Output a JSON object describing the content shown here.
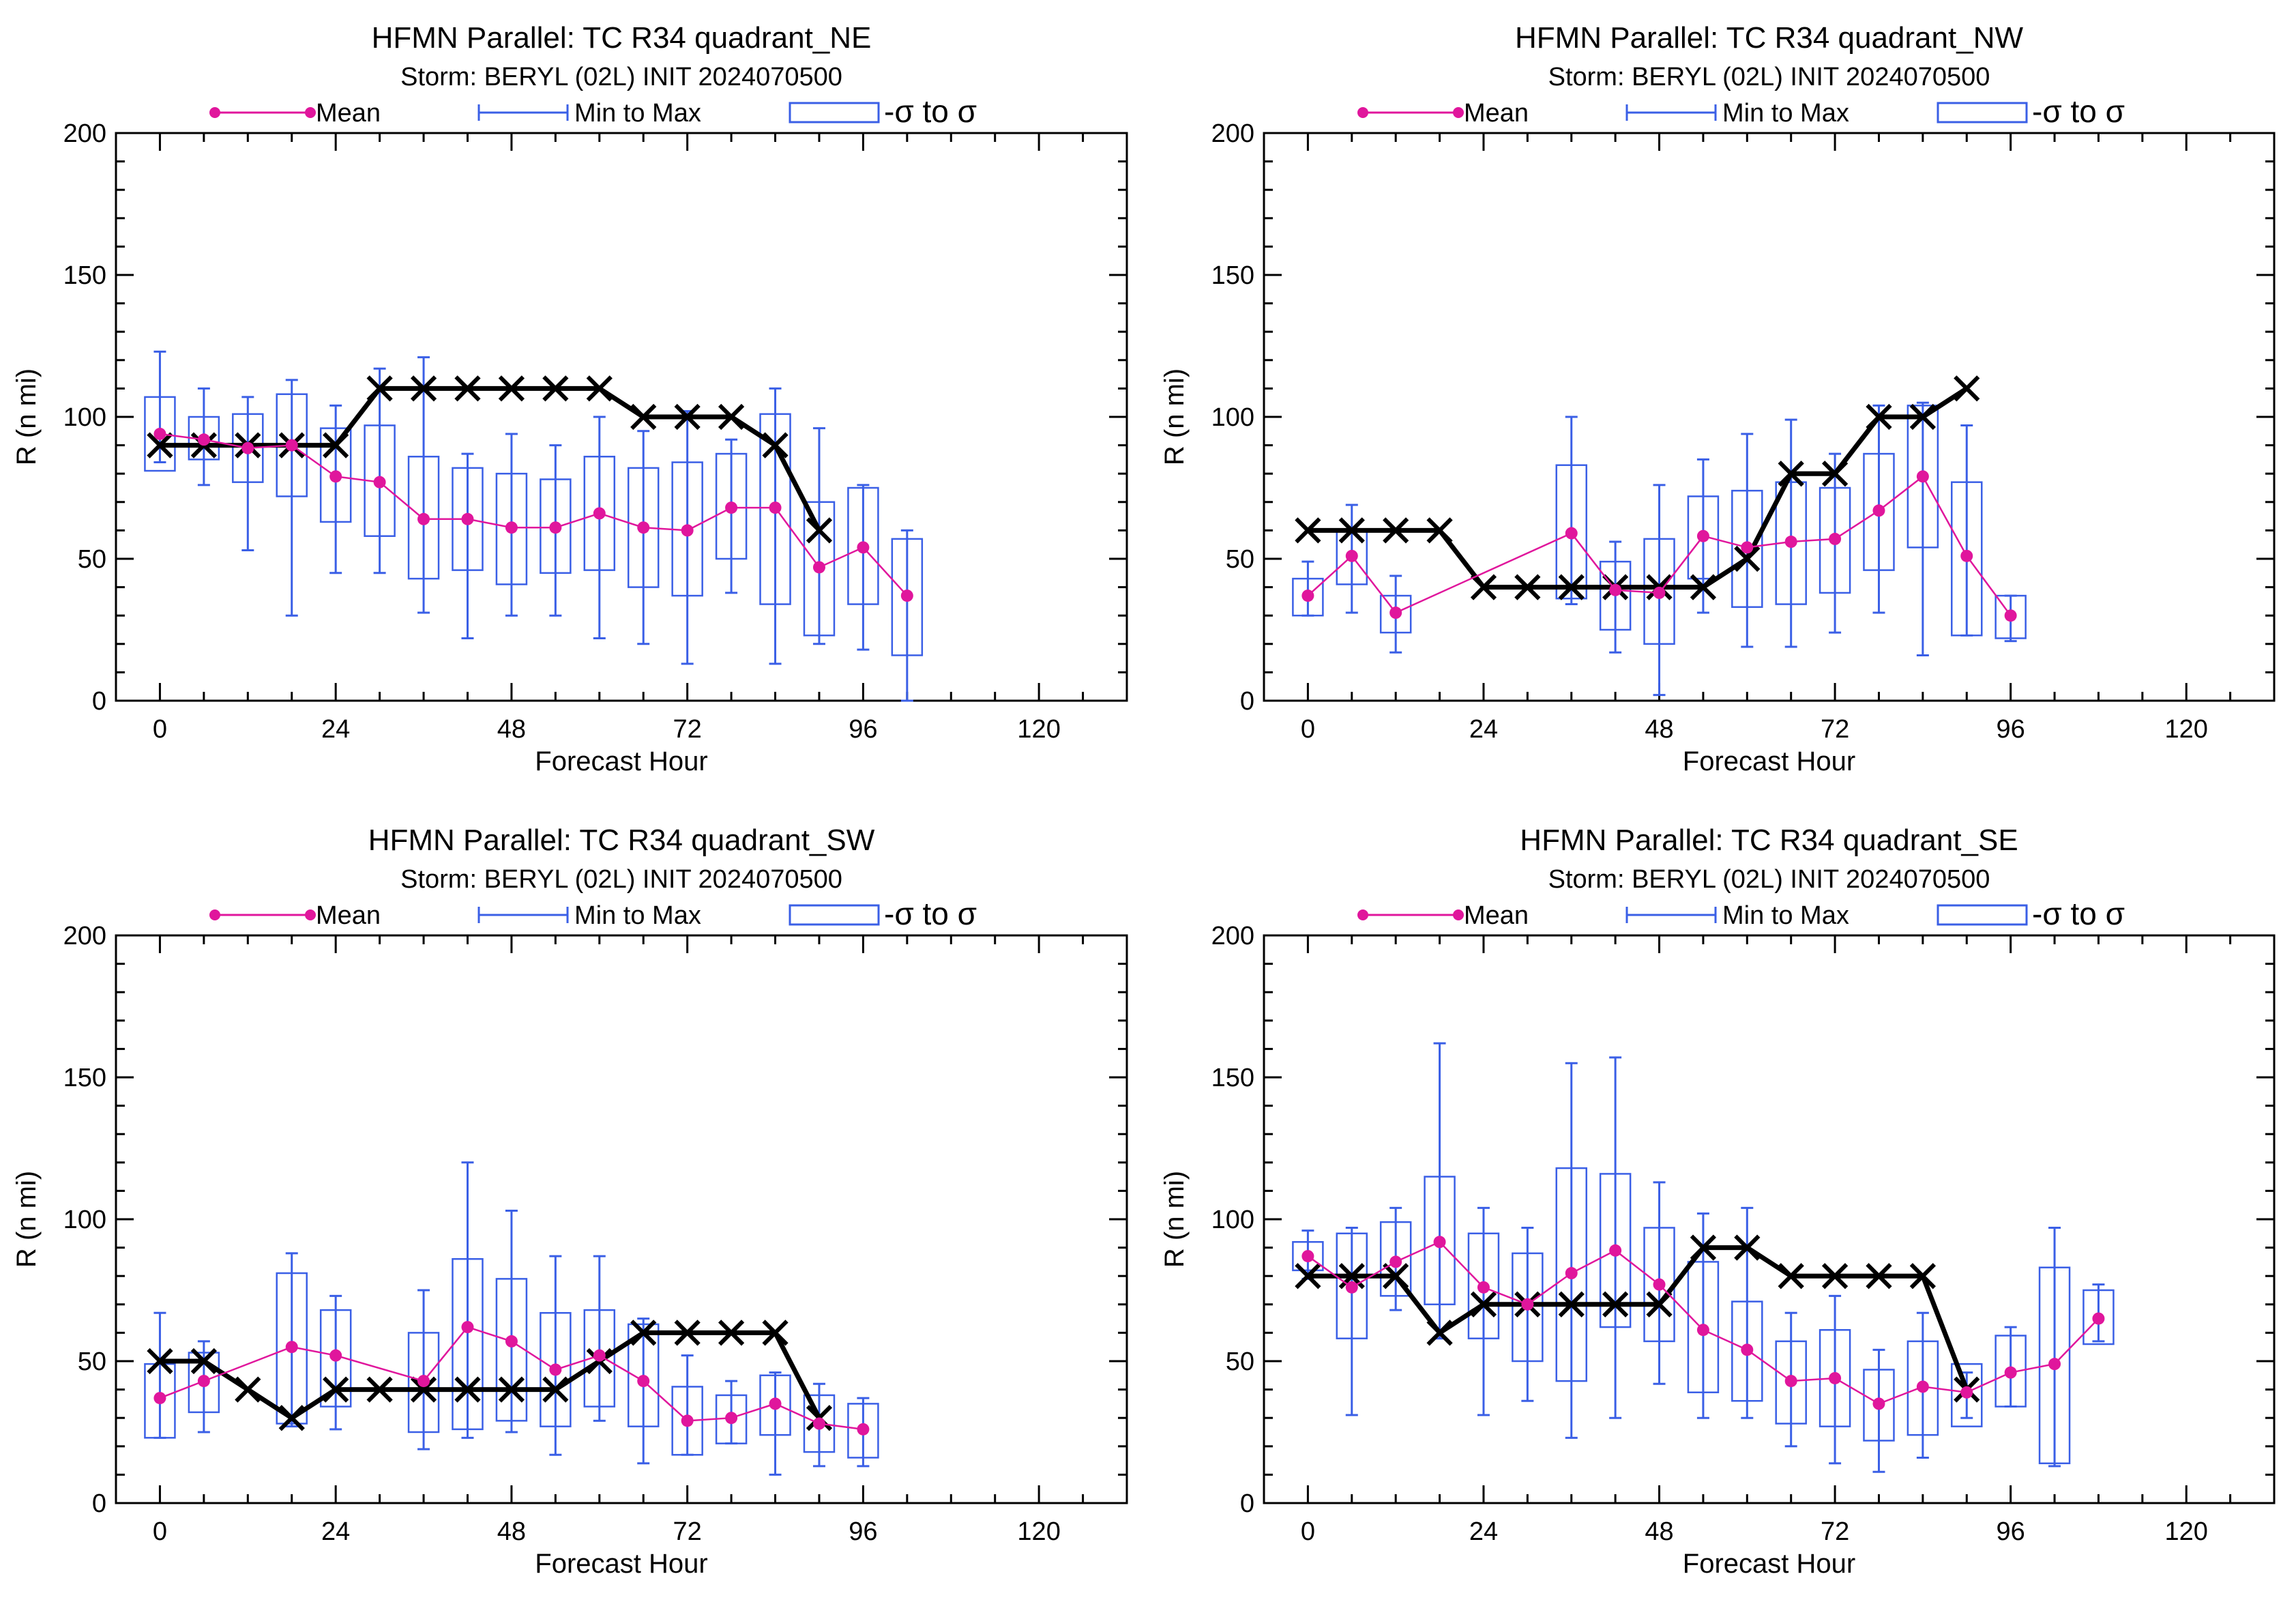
{
  "colors": {
    "mean": "#e0169c",
    "minmax": "#3a5fe6",
    "sigma_box": "#3a5fe6",
    "official": "#000000"
  },
  "legend": {
    "mean": "Mean",
    "minmax": "Min to Max",
    "sigma": "-σ to σ"
  },
  "chart_data": [
    {
      "type": "line",
      "title": "HFMN Parallel: TC  R34 quadrant_NE",
      "subtitle": "Storm: BERYL (02L) INIT 2024070500",
      "xlabel": "Forecast Hour",
      "ylabel": "R (n mi)",
      "xlim": [
        -6,
        132
      ],
      "ylim": [
        0,
        200
      ],
      "xticks": [
        0,
        24,
        48,
        72,
        96,
        120
      ],
      "yticks": [
        0,
        50,
        100,
        150,
        200
      ],
      "official_x": [
        0,
        6,
        12,
        18,
        24,
        30,
        36,
        42,
        48,
        54,
        60,
        66,
        72,
        78,
        84,
        90
      ],
      "official_y": [
        90,
        90,
        90,
        90,
        90,
        110,
        110,
        110,
        110,
        110,
        110,
        100,
        100,
        100,
        90,
        60
      ],
      "stats": {
        "x": [
          0,
          6,
          12,
          18,
          24,
          30,
          36,
          42,
          48,
          54,
          60,
          66,
          72,
          78,
          84,
          90,
          96,
          102
        ],
        "mean": [
          94,
          92,
          89,
          90,
          79,
          77,
          64,
          64,
          61,
          61,
          66,
          61,
          60,
          68,
          68,
          47,
          54,
          37
        ],
        "min": [
          84,
          76,
          53,
          30,
          45,
          45,
          31,
          22,
          30,
          30,
          22,
          20,
          13,
          38,
          13,
          20,
          18,
          0
        ],
        "max": [
          123,
          110,
          107,
          113,
          104,
          117,
          121,
          87,
          94,
          90,
          100,
          95,
          102,
          92,
          110,
          96,
          76,
          60
        ],
        "sigma_low": [
          81,
          85,
          77,
          72,
          63,
          58,
          43,
          46,
          41,
          45,
          46,
          40,
          37,
          50,
          34,
          23,
          34,
          16
        ],
        "sigma_high": [
          107,
          100,
          101,
          108,
          96,
          97,
          86,
          82,
          80,
          78,
          86,
          82,
          84,
          87,
          101,
          70,
          75,
          57
        ]
      }
    },
    {
      "type": "line",
      "title": "HFMN Parallel: TC  R34 quadrant_NW",
      "subtitle": "Storm: BERYL (02L) INIT 2024070500",
      "xlabel": "Forecast Hour",
      "ylabel": "R (n mi)",
      "xlim": [
        -6,
        132
      ],
      "ylim": [
        0,
        200
      ],
      "xticks": [
        0,
        24,
        48,
        72,
        96,
        120
      ],
      "yticks": [
        0,
        50,
        100,
        150,
        200
      ],
      "official_x": [
        0,
        6,
        12,
        18,
        24,
        30,
        36,
        42,
        48,
        54,
        60,
        66,
        72,
        78,
        84,
        90
      ],
      "official_y": [
        60,
        60,
        60,
        60,
        40,
        40,
        40,
        40,
        40,
        40,
        50,
        80,
        80,
        100,
        100,
        110
      ],
      "stats": {
        "x": [
          0,
          6,
          12,
          36,
          42,
          48,
          54,
          60,
          66,
          72,
          78,
          84,
          90,
          96
        ],
        "mean": [
          37,
          51,
          31,
          59,
          39,
          38,
          58,
          54,
          56,
          57,
          67,
          79,
          51,
          30
        ],
        "min": [
          30,
          31,
          17,
          34,
          17,
          2,
          31,
          19,
          19,
          24,
          31,
          16,
          23,
          21
        ],
        "max": [
          49,
          69,
          44,
          100,
          56,
          76,
          85,
          94,
          99,
          87,
          104,
          105,
          97,
          37
        ],
        "sigma_low": [
          30,
          41,
          24,
          36,
          25,
          20,
          43,
          33,
          34,
          38,
          46,
          54,
          23,
          22
        ],
        "sigma_high": [
          43,
          60,
          37,
          83,
          49,
          57,
          72,
          74,
          77,
          75,
          87,
          104,
          77,
          37
        ]
      }
    },
    {
      "type": "line",
      "title": "HFMN Parallel: TC  R34 quadrant_SW",
      "subtitle": "Storm: BERYL (02L) INIT 2024070500",
      "xlabel": "Forecast Hour",
      "ylabel": "R (n mi)",
      "xlim": [
        -6,
        132
      ],
      "ylim": [
        0,
        200
      ],
      "xticks": [
        0,
        24,
        48,
        72,
        96,
        120
      ],
      "yticks": [
        0,
        50,
        100,
        150,
        200
      ],
      "official_x": [
        0,
        6,
        12,
        18,
        24,
        30,
        36,
        42,
        48,
        54,
        60,
        66,
        72,
        78,
        84,
        90
      ],
      "official_y": [
        50,
        50,
        40,
        30,
        40,
        40,
        40,
        40,
        40,
        40,
        50,
        60,
        60,
        60,
        60,
        30
      ],
      "stats": {
        "x": [
          0,
          6,
          18,
          24,
          36,
          42,
          48,
          54,
          60,
          66,
          72,
          78,
          84,
          90,
          96
        ],
        "mean": [
          37,
          43,
          55,
          52,
          43,
          62,
          57,
          47,
          52,
          43,
          29,
          30,
          35,
          28,
          26
        ],
        "min": [
          23,
          25,
          27,
          26,
          19,
          23,
          25,
          17,
          29,
          14,
          17,
          21,
          10,
          13,
          13
        ],
        "max": [
          67,
          57,
          88,
          73,
          75,
          120,
          103,
          87,
          87,
          65,
          52,
          43,
          46,
          42,
          37
        ],
        "sigma_low": [
          23,
          32,
          28,
          34,
          25,
          26,
          29,
          27,
          34,
          27,
          17,
          21,
          24,
          18,
          16
        ],
        "sigma_high": [
          49,
          53,
          81,
          68,
          60,
          86,
          79,
          67,
          68,
          63,
          41,
          38,
          45,
          38,
          35
        ]
      }
    },
    {
      "type": "line",
      "title": "HFMN Parallel: TC  R34 quadrant_SE",
      "subtitle": "Storm: BERYL (02L) INIT 2024070500",
      "xlabel": "Forecast Hour",
      "ylabel": "R (n mi)",
      "xlim": [
        -6,
        132
      ],
      "ylim": [
        0,
        200
      ],
      "xticks": [
        0,
        24,
        48,
        72,
        96,
        120
      ],
      "yticks": [
        0,
        50,
        100,
        150,
        200
      ],
      "official_x": [
        0,
        6,
        12,
        18,
        24,
        30,
        36,
        42,
        48,
        54,
        60,
        66,
        72,
        78,
        84,
        90
      ],
      "official_y": [
        80,
        80,
        80,
        60,
        70,
        70,
        70,
        70,
        70,
        90,
        90,
        80,
        80,
        80,
        80,
        40
      ],
      "stats": {
        "x": [
          0,
          6,
          12,
          18,
          24,
          30,
          36,
          42,
          48,
          54,
          60,
          66,
          72,
          78,
          84,
          90,
          96,
          102,
          108
        ],
        "mean": [
          87,
          76,
          85,
          92,
          76,
          70,
          81,
          89,
          77,
          61,
          54,
          43,
          44,
          35,
          41,
          39,
          46,
          49,
          65
        ],
        "min": [
          79,
          31,
          68,
          58,
          31,
          36,
          23,
          30,
          42,
          30,
          30,
          20,
          14,
          11,
          16,
          30,
          34,
          13,
          57
        ],
        "max": [
          96,
          97,
          104,
          162,
          104,
          97,
          155,
          157,
          113,
          102,
          104,
          67,
          73,
          54,
          67,
          46,
          62,
          97,
          77
        ],
        "sigma_low": [
          82,
          58,
          73,
          70,
          58,
          50,
          43,
          62,
          57,
          39,
          36,
          28,
          27,
          22,
          24,
          27,
          34,
          14,
          56
        ],
        "sigma_high": [
          92,
          95,
          99,
          115,
          95,
          88,
          118,
          116,
          97,
          85,
          71,
          57,
          61,
          47,
          57,
          49,
          59,
          83,
          75
        ]
      }
    }
  ]
}
